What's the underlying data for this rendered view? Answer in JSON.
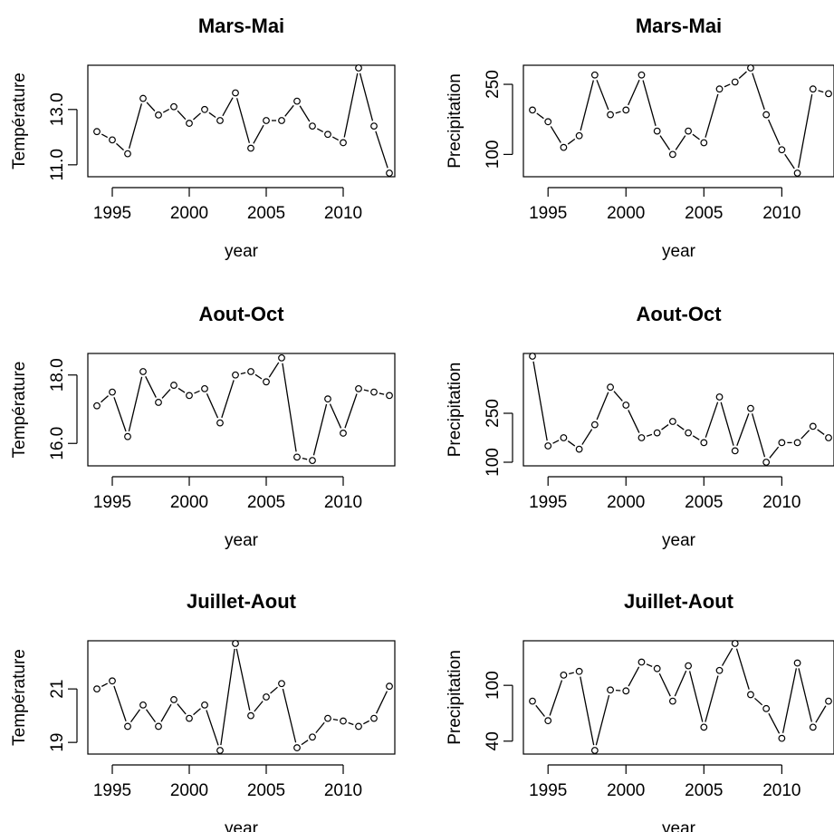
{
  "figure": {
    "background": "#ffffff",
    "line_color": "#000000",
    "point_fill": "#ffffff"
  },
  "chart_data": [
    {
      "type": "line",
      "title": "Mars-Mai",
      "xlabel": "year",
      "ylabel": "Température",
      "xticks": [
        1995,
        2000,
        2005,
        2010
      ],
      "yticks": [
        11.0,
        13.0
      ],
      "ytick_labels": [
        "11.0",
        "13.0"
      ],
      "xlim": [
        1994,
        2013
      ],
      "ylim": [
        10.7,
        14.5
      ],
      "series": [
        {
          "x": [
            1994,
            1995,
            1996,
            1997,
            1998,
            1999,
            2000,
            2001,
            2002,
            2003,
            2004,
            2005,
            2006,
            2007,
            2008,
            2009,
            2010,
            2011,
            2012,
            2013
          ],
          "y": [
            12.2,
            11.9,
            11.4,
            13.4,
            12.8,
            13.1,
            12.5,
            13.0,
            12.6,
            13.6,
            11.6,
            12.6,
            12.6,
            13.3,
            12.4,
            12.1,
            11.8,
            14.5,
            12.4,
            10.7
          ]
        }
      ]
    },
    {
      "type": "line",
      "title": "Mars-Mai",
      "xlabel": "year",
      "ylabel": "Precipitation",
      "xticks": [
        1995,
        2000,
        2005,
        2010
      ],
      "yticks": [
        100,
        250
      ],
      "ytick_labels": [
        "100",
        "250"
      ],
      "xlim": [
        1994,
        2013
      ],
      "ylim": [
        60,
        285
      ],
      "series": [
        {
          "x": [
            1994,
            1995,
            1996,
            1997,
            1998,
            1999,
            2000,
            2001,
            2002,
            2003,
            2004,
            2005,
            2006,
            2007,
            2008,
            2009,
            2010,
            2011,
            2012,
            2013
          ],
          "y": [
            195,
            170,
            115,
            140,
            270,
            185,
            195,
            270,
            150,
            100,
            150,
            125,
            240,
            255,
            285,
            185,
            110,
            60,
            240,
            230
          ]
        }
      ]
    },
    {
      "type": "line",
      "title": "Aout-Oct",
      "xlabel": "year",
      "ylabel": "Température",
      "xticks": [
        1995,
        2000,
        2005,
        2010
      ],
      "yticks": [
        16.0,
        18.0
      ],
      "ytick_labels": [
        "16.0",
        "18.0"
      ],
      "xlim": [
        1994,
        2013
      ],
      "ylim": [
        15.45,
        18.55
      ],
      "series": [
        {
          "x": [
            1994,
            1995,
            1996,
            1997,
            1998,
            1999,
            2000,
            2001,
            2002,
            2003,
            2004,
            2005,
            2006,
            2007,
            2008,
            2009,
            2010,
            2011,
            2012,
            2013
          ],
          "y": [
            17.1,
            17.5,
            16.2,
            18.1,
            17.2,
            17.7,
            17.4,
            17.6,
            16.6,
            18.0,
            18.1,
            17.8,
            18.5,
            15.6,
            15.5,
            17.3,
            16.3,
            17.6,
            17.5,
            17.4
          ]
        }
      ]
    },
    {
      "type": "line",
      "title": "Aout-Oct",
      "xlabel": "year",
      "ylabel": "Precipitation",
      "xticks": [
        1995,
        2000,
        2005,
        2010
      ],
      "yticks": [
        100,
        250
      ],
      "ytick_labels": [
        "100",
        "250"
      ],
      "xlim": [
        1994,
        2013
      ],
      "ylim": [
        100,
        425
      ],
      "series": [
        {
          "x": [
            1994,
            1995,
            1996,
            1997,
            1998,
            1999,
            2000,
            2001,
            2002,
            2003,
            2004,
            2005,
            2006,
            2007,
            2008,
            2009,
            2010,
            2011,
            2012,
            2013
          ],
          "y": [
            425,
            150,
            175,
            140,
            215,
            330,
            275,
            175,
            190,
            225,
            190,
            160,
            300,
            135,
            265,
            100,
            160,
            160,
            210,
            175
          ]
        }
      ]
    },
    {
      "type": "line",
      "title": "Juillet-Aout",
      "xlabel": "year",
      "ylabel": "Température",
      "xticks": [
        1995,
        2000,
        2005,
        2010
      ],
      "yticks": [
        19,
        21
      ],
      "ytick_labels": [
        "19",
        "21"
      ],
      "xlim": [
        1994,
        2013
      ],
      "ylim": [
        18.7,
        22.7
      ],
      "series": [
        {
          "x": [
            1994,
            1995,
            1996,
            1997,
            1998,
            1999,
            2000,
            2001,
            2002,
            2003,
            2004,
            2005,
            2006,
            2007,
            2008,
            2009,
            2010,
            2011,
            2012,
            2013
          ],
          "y": [
            21.0,
            21.3,
            19.6,
            20.4,
            19.6,
            20.6,
            19.9,
            20.4,
            18.7,
            22.7,
            20.0,
            20.7,
            21.2,
            18.8,
            19.2,
            19.9,
            19.8,
            19.6,
            19.9,
            21.1
          ]
        }
      ]
    },
    {
      "type": "line",
      "title": "Juillet-Aout",
      "xlabel": "year",
      "ylabel": "Precipitation",
      "xticks": [
        1995,
        2000,
        2005,
        2010
      ],
      "yticks": [
        40,
        100
      ],
      "ytick_labels": [
        "40",
        "100"
      ],
      "xlim": [
        1994,
        2013
      ],
      "ylim": [
        30,
        145
      ],
      "series": [
        {
          "x": [
            1994,
            1995,
            1996,
            1997,
            1998,
            1999,
            2000,
            2001,
            2002,
            2003,
            2004,
            2005,
            2006,
            2007,
            2008,
            2009,
            2010,
            2011,
            2012,
            2013
          ],
          "y": [
            83,
            62,
            111,
            115,
            30,
            95,
            94,
            125,
            118,
            83,
            121,
            55,
            116,
            145,
            90,
            75,
            43,
            124,
            55,
            83
          ]
        }
      ]
    }
  ]
}
